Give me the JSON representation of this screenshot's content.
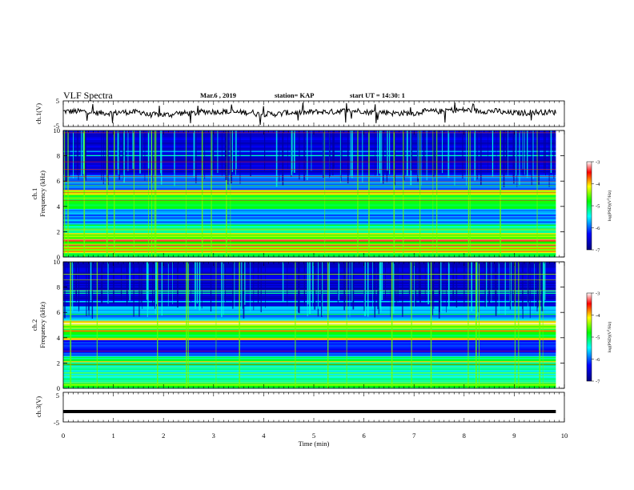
{
  "header": {
    "title": "VLF Spectra",
    "date": "Mar.6 , 2019",
    "station": "station= KAP",
    "start": "start UT = 14:30: 1"
  },
  "colors": {
    "background": "#ffffff",
    "axes": "#000000",
    "colormap": [
      "#00007f",
      "#0000ff",
      "#00ffff",
      "#00ff00",
      "#ffff00",
      "#ff0000",
      "#ffffff"
    ]
  },
  "chart_data": [
    {
      "type": "line",
      "panel": "ch1-waveform",
      "ylabel": "ch.1(V)",
      "ylim": [
        -5,
        5
      ],
      "yticks": [
        -5,
        5
      ],
      "xlim": [
        0,
        10
      ],
      "xlim_data": [
        0,
        9.83
      ],
      "values_approx": [
        0.9,
        0.3,
        0.6,
        -0.4,
        0.2,
        0.8,
        0.5,
        -0.1,
        0.4,
        0.7,
        1.1,
        0.6,
        0.2,
        0.9,
        1.4,
        1.0,
        0.3,
        0.6
      ]
    },
    {
      "type": "heatmap",
      "panel": "ch1-spectrogram",
      "ylabel": "ch.1 Frequency (kHz)",
      "ylim": [
        0,
        10
      ],
      "yticks": [
        0,
        2,
        4,
        6,
        8,
        10
      ],
      "xlim": [
        0,
        10
      ],
      "xlim_data": [
        0,
        9.83
      ],
      "colorbar": {
        "label": "log(PSD)(V^2/Hz)",
        "range": [
          -7,
          -3
        ],
        "ticks": [
          -3,
          -4,
          -5,
          -6,
          -7
        ]
      }
    },
    {
      "type": "heatmap",
      "panel": "ch2-spectrogram",
      "ylabel": "ch.2 Frequency (kHz)",
      "ylim": [
        0,
        10
      ],
      "yticks": [
        0,
        2,
        4,
        6,
        8,
        10
      ],
      "xlim": [
        0,
        10
      ],
      "xlim_data": [
        0,
        9.83
      ],
      "colorbar": {
        "label": "log(PSD)(V^2/Hz)",
        "range": [
          -7,
          -3
        ],
        "ticks": [
          -3,
          -4,
          -5,
          -6,
          -7
        ]
      }
    },
    {
      "type": "line",
      "panel": "ch3-waveform",
      "ylabel": "ch.3(V)",
      "ylim": [
        -5,
        5
      ],
      "yticks": [
        -5,
        5
      ],
      "xlim": [
        0,
        10
      ],
      "xlim_data": [
        0,
        9.83
      ],
      "constant_value": -1.5
    }
  ],
  "xaxis": {
    "label": "Time (min)",
    "ticks": [
      "0",
      "1",
      "2",
      "3",
      "4",
      "5",
      "6",
      "7",
      "8",
      "9",
      "10"
    ]
  }
}
